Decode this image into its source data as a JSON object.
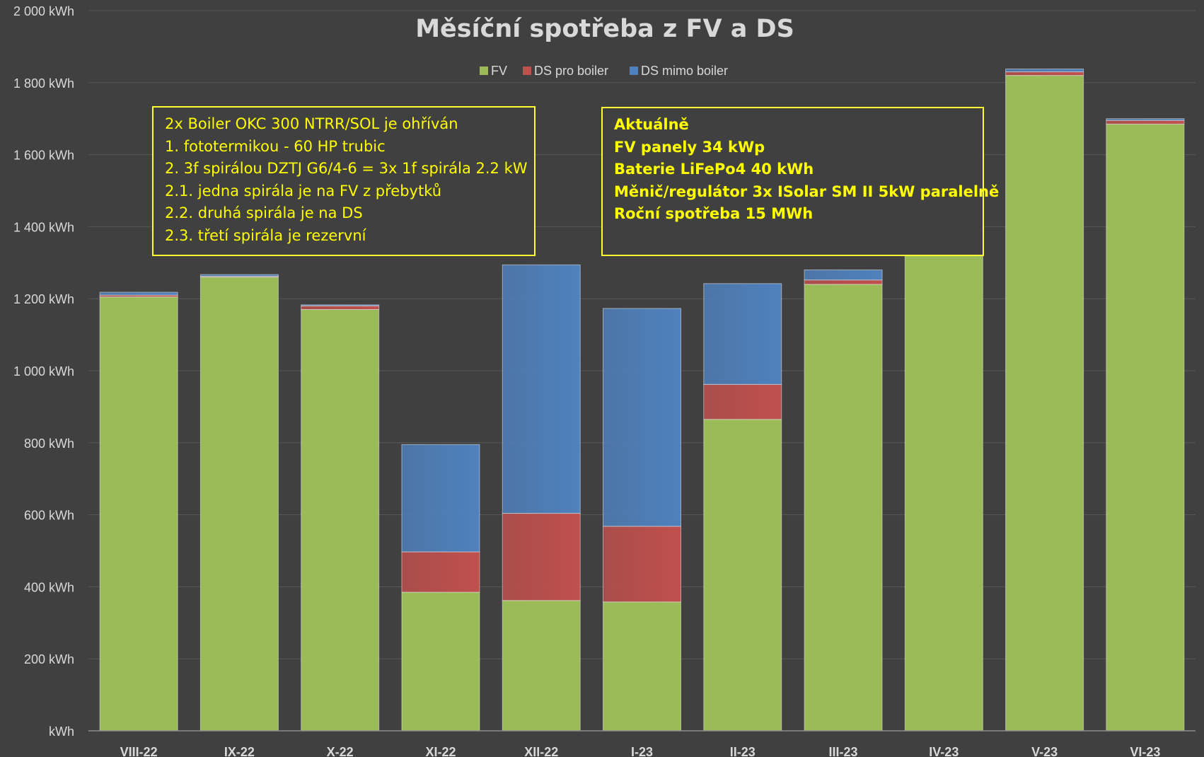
{
  "chart_data": {
    "type": "bar",
    "stacked": true,
    "title": "Měsíční spotřeba z FV a DS",
    "xlabel": "",
    "ylabel": "",
    "ylim": [
      0,
      2000
    ],
    "yticks": [
      "kWh",
      "200 kWh",
      "400 kWh",
      "600 kWh",
      "800 kWh",
      "1 000 kWh",
      "1 200 kWh",
      "1 400 kWh",
      "1 600 kWh",
      "1 800 kWh",
      "2 000 kWh"
    ],
    "grid": true,
    "legend_position": "top-center",
    "categories": [
      "VIII-22",
      "IX-22",
      "X-22",
      "XI-22",
      "XII-22",
      "I-23",
      "II-23",
      "III-23",
      "IV-23",
      "V-23",
      "VI-23"
    ],
    "series": [
      {
        "name": "FV",
        "color": "#9bbb59",
        "values": [
          1205,
          1260,
          1170,
          385,
          362,
          358,
          865,
          1240,
          1330,
          1820,
          1685
        ]
      },
      {
        "name": "DS pro boiler",
        "color": "#c0504d",
        "values": [
          5,
          2,
          10,
          112,
          242,
          210,
          97,
          12,
          0,
          10,
          10
        ]
      },
      {
        "name": "DS mimo boiler",
        "color": "#4f81bd",
        "values": [
          8,
          5,
          3,
          298,
          690,
          605,
          280,
          28,
          0,
          8,
          5
        ]
      }
    ]
  },
  "notes": {
    "boiler": [
      "2x Boiler OKC 300 NTRR/SOL je ohříván",
      "1. fototermikou - 60 HP trubic",
      "2. 3f spirálou DZTJ G6/4-6 = 3x 1f spirála 2.2 kW",
      "2.1. jedna spirála je na FV z přebytků",
      "2.2. druhá spirála je na DS",
      "2.3. třetí spirála je rezervní"
    ],
    "current": [
      "Aktuálně",
      "FV panely 34 kWp",
      "Baterie LiFePo4 40 kWh",
      "Měnič/regulátor 3x ISolar SM II 5kW paralelně",
      "Roční spotřeba 15 MWh"
    ]
  },
  "colors": {
    "background": "#404040",
    "grid": "#595959",
    "text": "#d9d9d9",
    "note_text": "#ffff00",
    "note_border": "#ffff33"
  }
}
